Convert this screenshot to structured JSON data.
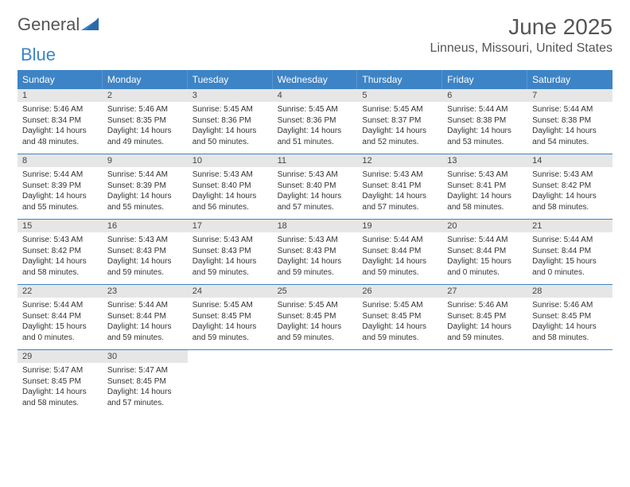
{
  "logo": {
    "text_a": "General",
    "text_b": "Blue"
  },
  "title": "June 2025",
  "subtitle": "Linneus, Missouri, United States",
  "colors": {
    "header_bg": "#3d84c6",
    "header_text": "#ffffff",
    "daynum_bg": "#e6e6e6",
    "row_divider": "#3d84c6",
    "text": "#333333",
    "muted": "#555555"
  },
  "weekdays": [
    "Sunday",
    "Monday",
    "Tuesday",
    "Wednesday",
    "Thursday",
    "Friday",
    "Saturday"
  ],
  "weeks": [
    [
      {
        "n": "1",
        "r": "5:46 AM",
        "s": "8:34 PM",
        "d": "14 hours and 48 minutes."
      },
      {
        "n": "2",
        "r": "5:46 AM",
        "s": "8:35 PM",
        "d": "14 hours and 49 minutes."
      },
      {
        "n": "3",
        "r": "5:45 AM",
        "s": "8:36 PM",
        "d": "14 hours and 50 minutes."
      },
      {
        "n": "4",
        "r": "5:45 AM",
        "s": "8:36 PM",
        "d": "14 hours and 51 minutes."
      },
      {
        "n": "5",
        "r": "5:45 AM",
        "s": "8:37 PM",
        "d": "14 hours and 52 minutes."
      },
      {
        "n": "6",
        "r": "5:44 AM",
        "s": "8:38 PM",
        "d": "14 hours and 53 minutes."
      },
      {
        "n": "7",
        "r": "5:44 AM",
        "s": "8:38 PM",
        "d": "14 hours and 54 minutes."
      }
    ],
    [
      {
        "n": "8",
        "r": "5:44 AM",
        "s": "8:39 PM",
        "d": "14 hours and 55 minutes."
      },
      {
        "n": "9",
        "r": "5:44 AM",
        "s": "8:39 PM",
        "d": "14 hours and 55 minutes."
      },
      {
        "n": "10",
        "r": "5:43 AM",
        "s": "8:40 PM",
        "d": "14 hours and 56 minutes."
      },
      {
        "n": "11",
        "r": "5:43 AM",
        "s": "8:40 PM",
        "d": "14 hours and 57 minutes."
      },
      {
        "n": "12",
        "r": "5:43 AM",
        "s": "8:41 PM",
        "d": "14 hours and 57 minutes."
      },
      {
        "n": "13",
        "r": "5:43 AM",
        "s": "8:41 PM",
        "d": "14 hours and 58 minutes."
      },
      {
        "n": "14",
        "r": "5:43 AM",
        "s": "8:42 PM",
        "d": "14 hours and 58 minutes."
      }
    ],
    [
      {
        "n": "15",
        "r": "5:43 AM",
        "s": "8:42 PM",
        "d": "14 hours and 58 minutes."
      },
      {
        "n": "16",
        "r": "5:43 AM",
        "s": "8:43 PM",
        "d": "14 hours and 59 minutes."
      },
      {
        "n": "17",
        "r": "5:43 AM",
        "s": "8:43 PM",
        "d": "14 hours and 59 minutes."
      },
      {
        "n": "18",
        "r": "5:43 AM",
        "s": "8:43 PM",
        "d": "14 hours and 59 minutes."
      },
      {
        "n": "19",
        "r": "5:44 AM",
        "s": "8:44 PM",
        "d": "14 hours and 59 minutes."
      },
      {
        "n": "20",
        "r": "5:44 AM",
        "s": "8:44 PM",
        "d": "15 hours and 0 minutes."
      },
      {
        "n": "21",
        "r": "5:44 AM",
        "s": "8:44 PM",
        "d": "15 hours and 0 minutes."
      }
    ],
    [
      {
        "n": "22",
        "r": "5:44 AM",
        "s": "8:44 PM",
        "d": "15 hours and 0 minutes."
      },
      {
        "n": "23",
        "r": "5:44 AM",
        "s": "8:44 PM",
        "d": "14 hours and 59 minutes."
      },
      {
        "n": "24",
        "r": "5:45 AM",
        "s": "8:45 PM",
        "d": "14 hours and 59 minutes."
      },
      {
        "n": "25",
        "r": "5:45 AM",
        "s": "8:45 PM",
        "d": "14 hours and 59 minutes."
      },
      {
        "n": "26",
        "r": "5:45 AM",
        "s": "8:45 PM",
        "d": "14 hours and 59 minutes."
      },
      {
        "n": "27",
        "r": "5:46 AM",
        "s": "8:45 PM",
        "d": "14 hours and 59 minutes."
      },
      {
        "n": "28",
        "r": "5:46 AM",
        "s": "8:45 PM",
        "d": "14 hours and 58 minutes."
      }
    ],
    [
      {
        "n": "29",
        "r": "5:47 AM",
        "s": "8:45 PM",
        "d": "14 hours and 58 minutes."
      },
      {
        "n": "30",
        "r": "5:47 AM",
        "s": "8:45 PM",
        "d": "14 hours and 57 minutes."
      },
      null,
      null,
      null,
      null,
      null
    ]
  ],
  "labels": {
    "sunrise": "Sunrise:",
    "sunset": "Sunset:",
    "daylight": "Daylight:"
  }
}
